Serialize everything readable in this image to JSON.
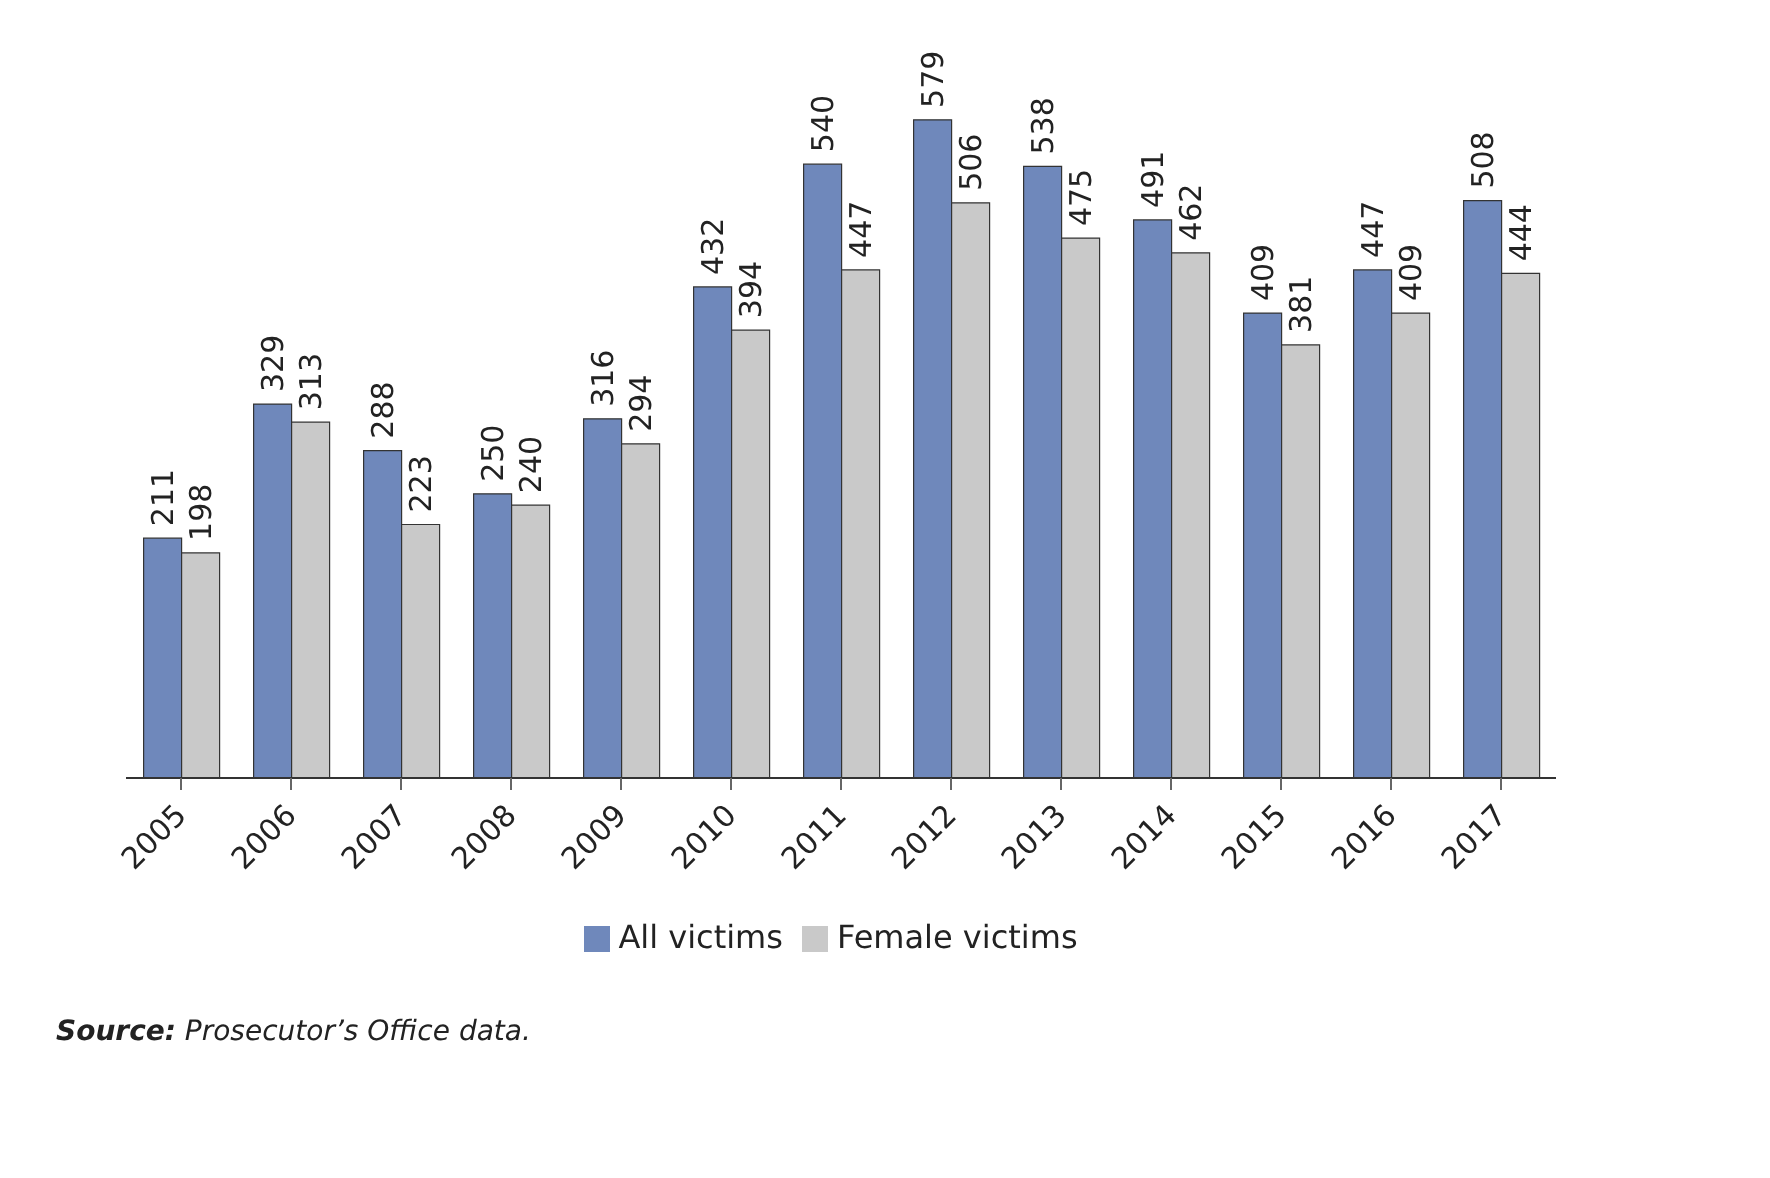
{
  "chart_data": {
    "type": "bar",
    "categories": [
      "2005",
      "2006",
      "2007",
      "2008",
      "2009",
      "2010",
      "2011",
      "2012",
      "2013",
      "2014",
      "2015",
      "2016",
      "2017"
    ],
    "series": [
      {
        "name": "All victims",
        "color": "#6f88bb",
        "values": [
          211,
          329,
          288,
          250,
          316,
          432,
          540,
          579,
          538,
          491,
          409,
          447,
          508
        ]
      },
      {
        "name": "Female victims",
        "color": "#c9c9c9",
        "values": [
          198,
          313,
          223,
          240,
          294,
          394,
          447,
          506,
          475,
          462,
          381,
          409,
          444
        ]
      }
    ],
    "data_labels": true,
    "legend": "bottom",
    "annotations": [
      "Source: Prosecutor’s Office data."
    ]
  }
}
